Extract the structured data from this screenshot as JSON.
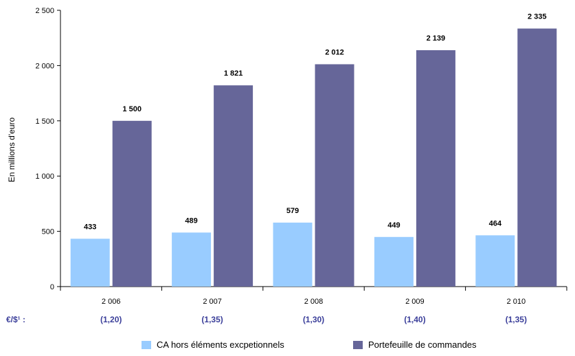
{
  "chart_data": {
    "type": "bar",
    "categories": [
      "2 006",
      "2 007",
      "2 008",
      "2 009",
      "2 010"
    ],
    "series": [
      {
        "name": "CA hors éléments excpetionnels",
        "values": [
          433,
          489,
          579,
          449,
          464
        ],
        "labels": [
          "433",
          "489",
          "579",
          "449",
          "464"
        ],
        "color": "#99ccff"
      },
      {
        "name": "Portefeuille de commandes",
        "values": [
          1500,
          1821,
          2012,
          2139,
          2335
        ],
        "labels": [
          "1 500",
          "1 821",
          "2 012",
          "2 139",
          "2 335"
        ],
        "color": "#666699"
      }
    ],
    "ylabel": "En millions d'euro",
    "xlabel": "",
    "ylim": [
      0,
      2500
    ],
    "yticks": [
      0,
      500,
      1000,
      1500,
      2000,
      2500
    ],
    "ytick_labels": [
      "0",
      "500",
      "1 000",
      "1 500",
      "2 000",
      "2 500"
    ],
    "grid": false,
    "legend_position": "bottom",
    "rate_row": {
      "label": "€/$¹ :",
      "values": [
        "(1,20)",
        "(1,35)",
        "(1,30)",
        "(1,40)",
        "(1,35)"
      ],
      "color": "#3b3f9a"
    }
  }
}
